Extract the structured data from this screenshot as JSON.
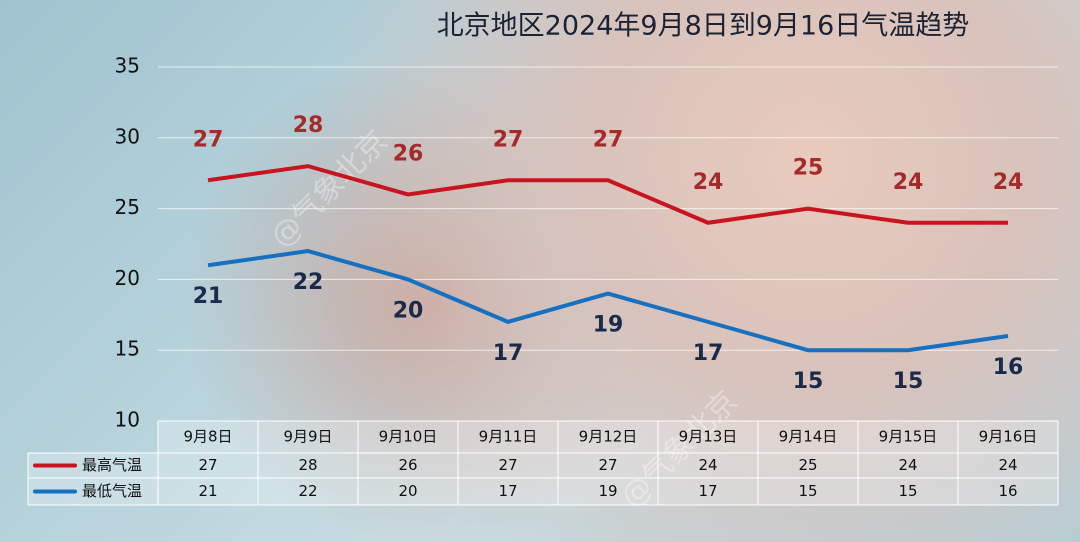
{
  "chart_data": {
    "type": "line",
    "title": "北京地区2024年9月8日到9月16日气温趋势",
    "watermark": "@气象北京",
    "categories": [
      "9月8日",
      "9月9日",
      "9月10日",
      "9月11日",
      "9月12日",
      "9月13日",
      "9月14日",
      "9月15日",
      "9月16日"
    ],
    "series": [
      {
        "name": "最高气温",
        "color": "#c8141e",
        "label_color": "#a52a2a",
        "values": [
          27,
          28,
          26,
          27,
          27,
          24,
          25,
          24,
          24
        ]
      },
      {
        "name": "最低气温",
        "color": "#1670c0",
        "label_color": "#1a2a4a",
        "values": [
          21,
          22,
          20,
          17,
          19,
          17,
          15,
          15,
          16
        ]
      }
    ],
    "ylim": [
      10,
      35
    ],
    "yticks": [
      10,
      15,
      20,
      25,
      30,
      35
    ],
    "grid": true,
    "data_table": true
  }
}
